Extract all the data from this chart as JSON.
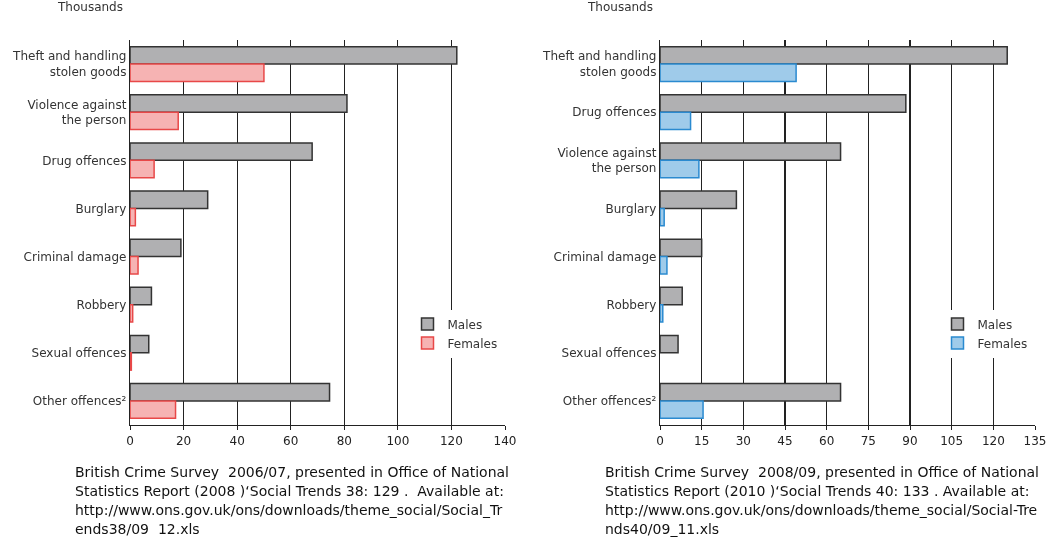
{
  "chart_data": [
    {
      "type": "bar",
      "orientation": "horizontal",
      "xlabel": "Thousands",
      "categories": [
        "Theft and handling stolen goods",
        "Violence against the person",
        "Drug offences",
        "Burglary",
        "Criminal damage",
        "Robbery",
        "Sexual offences",
        "Other offences²"
      ],
      "series": [
        {
          "name": "Males",
          "color": "#b0b0b2",
          "values": [
            122,
            81,
            68,
            29,
            19,
            8,
            7,
            74.5
          ]
        },
        {
          "name": "Females",
          "color": "#f6b3b3",
          "values": [
            50,
            18,
            9,
            2,
            3,
            1,
            0.5,
            17
          ]
        }
      ],
      "xlim": [
        0,
        140
      ],
      "xticks": [
        0,
        20,
        40,
        60,
        80,
        100,
        120,
        140
      ],
      "grid": "x",
      "legend": "right",
      "annotations": [
        "British Crime Survey  2006/07, presented in Office of National Statistics Report (2008 )‘Social Trends 38: 129 .  Available at: http://www.ons.gov.uk/ons/downloads/theme_social/Social_Trends38/09  12.xls"
      ]
    },
    {
      "type": "bar",
      "orientation": "horizontal",
      "xlabel": "Thousands",
      "categories": [
        "Theft and handling stolen goods",
        "Drug offences",
        "Violence against the person",
        "Burglary",
        "Criminal damage",
        "Robbery",
        "Sexual offences",
        "Other offences²"
      ],
      "series": [
        {
          "name": "Males",
          "color": "#b0b0b2",
          "values": [
            125,
            88.5,
            65,
            27.5,
            15,
            8,
            6.5,
            65
          ]
        },
        {
          "name": "Females",
          "color": "#9fcbea",
          "values": [
            49,
            11,
            14,
            1.5,
            2.5,
            1,
            null,
            15.5
          ]
        }
      ],
      "xlim": [
        0,
        135
      ],
      "xticks": [
        0,
        15,
        30,
        45,
        60,
        75,
        90,
        105,
        120,
        135
      ],
      "grid": "x",
      "legend": "right",
      "annotations": [
        "British Crime Survey  2008/09, presented in Office of National Statistics Report (2010 )‘Social Trends 40: 133 . Available at: http://www.ons.gov.uk/ons/downloads/theme_social/Social-Trends40/09_11.xls"
      ]
    }
  ]
}
